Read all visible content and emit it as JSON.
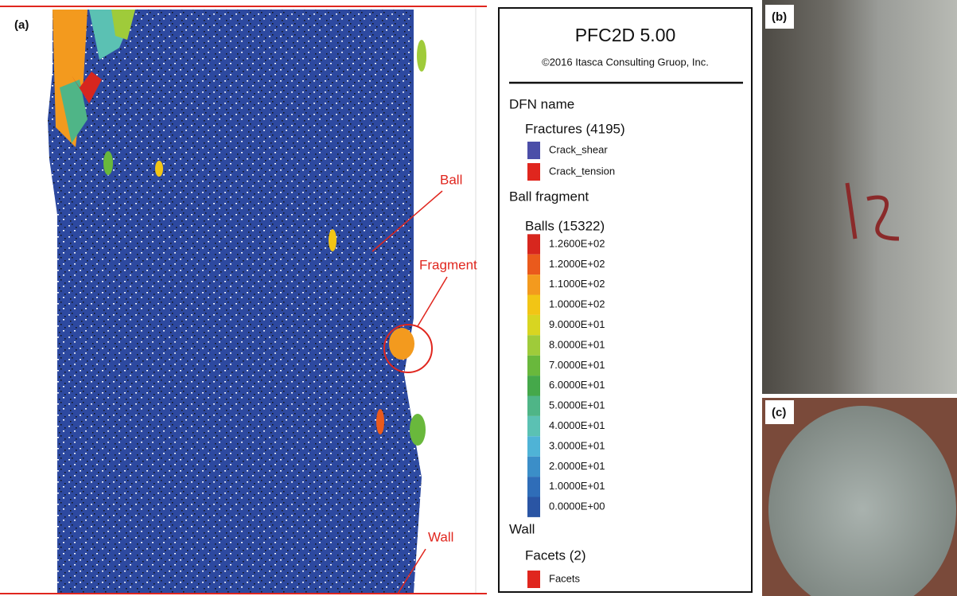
{
  "panels": {
    "a": "(a)",
    "b": "(b)",
    "c": "(c)"
  },
  "annotations": {
    "ball": "Ball",
    "fragment": "Fragment",
    "wall": "Wall"
  },
  "legend": {
    "title": "PFC2D 5.00",
    "copyright": "©2016 Itasca Consulting Gruop, Inc.",
    "dfn_heading": "DFN name",
    "fractures": "Fractures (4195)",
    "fracture_items": [
      {
        "label": "Crack_shear",
        "color": "#4b4ea8"
      },
      {
        "label": "Crack_tension",
        "color": "#e0261e"
      }
    ],
    "ball_heading": "Ball fragment",
    "balls": "Balls (15322)",
    "scale": [
      {
        "label": "1.2600E+02",
        "color": "#d7261e"
      },
      {
        "label": "1.2000E+02",
        "color": "#ea5a1c"
      },
      {
        "label": "1.1000E+02",
        "color": "#f39a1e"
      },
      {
        "label": "1.0000E+02",
        "color": "#f2c515"
      },
      {
        "label": "9.0000E+01",
        "color": "#d8d521"
      },
      {
        "label": "8.0000E+01",
        "color": "#9fcb3a"
      },
      {
        "label": "7.0000E+01",
        "color": "#69b83c"
      },
      {
        "label": "6.0000E+01",
        "color": "#45a84a"
      },
      {
        "label": "5.0000E+01",
        "color": "#4fb587"
      },
      {
        "label": "4.0000E+01",
        "color": "#5bc1b3"
      },
      {
        "label": "3.0000E+01",
        "color": "#4fb3d6"
      },
      {
        "label": "2.0000E+01",
        "color": "#3b8ec8"
      },
      {
        "label": "1.0000E+01",
        "color": "#2f6db8"
      },
      {
        "label": "0.0000E+00",
        "color": "#2a55a4"
      }
    ],
    "wall_heading": "Wall",
    "facets": "Facets (2)",
    "facet_items": [
      {
        "label": "Facets",
        "color": "#e0261e"
      }
    ]
  }
}
